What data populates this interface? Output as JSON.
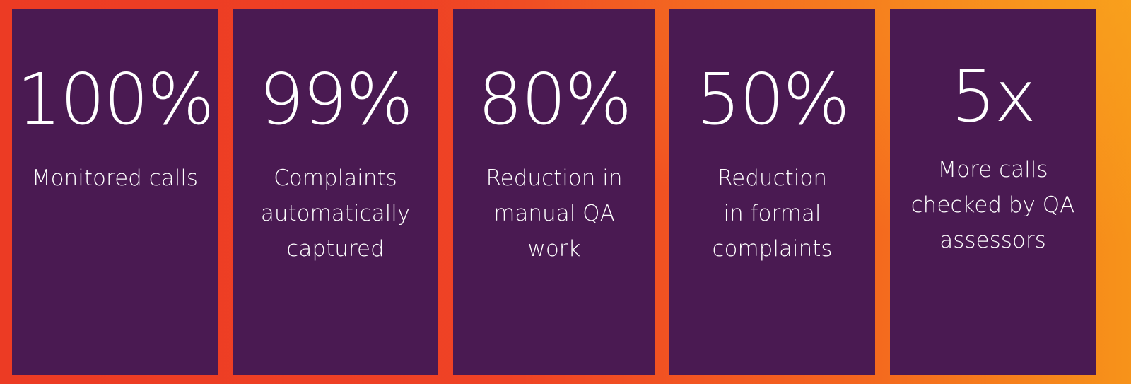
{
  "stats": [
    {
      "value": "100%",
      "label_lines": [
        "Monitored calls"
      ]
    },
    {
      "value": "99%",
      "label_lines": [
        "Complaints",
        "automatically",
        "captured"
      ]
    },
    {
      "value": "80%",
      "label_lines": [
        "Reduction in",
        "manual QA",
        "work"
      ]
    },
    {
      "value": "50%",
      "label_lines": [
        "Reduction",
        "in formal",
        "complaints"
      ]
    },
    {
      "value": "5x",
      "label_lines": [
        "More calls",
        "checked by QA",
        "assessors"
      ]
    }
  ],
  "colors": {
    "panel": "#4a1a52",
    "text": "#ffffff",
    "border_left": "#ec3b24",
    "border_right": "#f7931a"
  }
}
